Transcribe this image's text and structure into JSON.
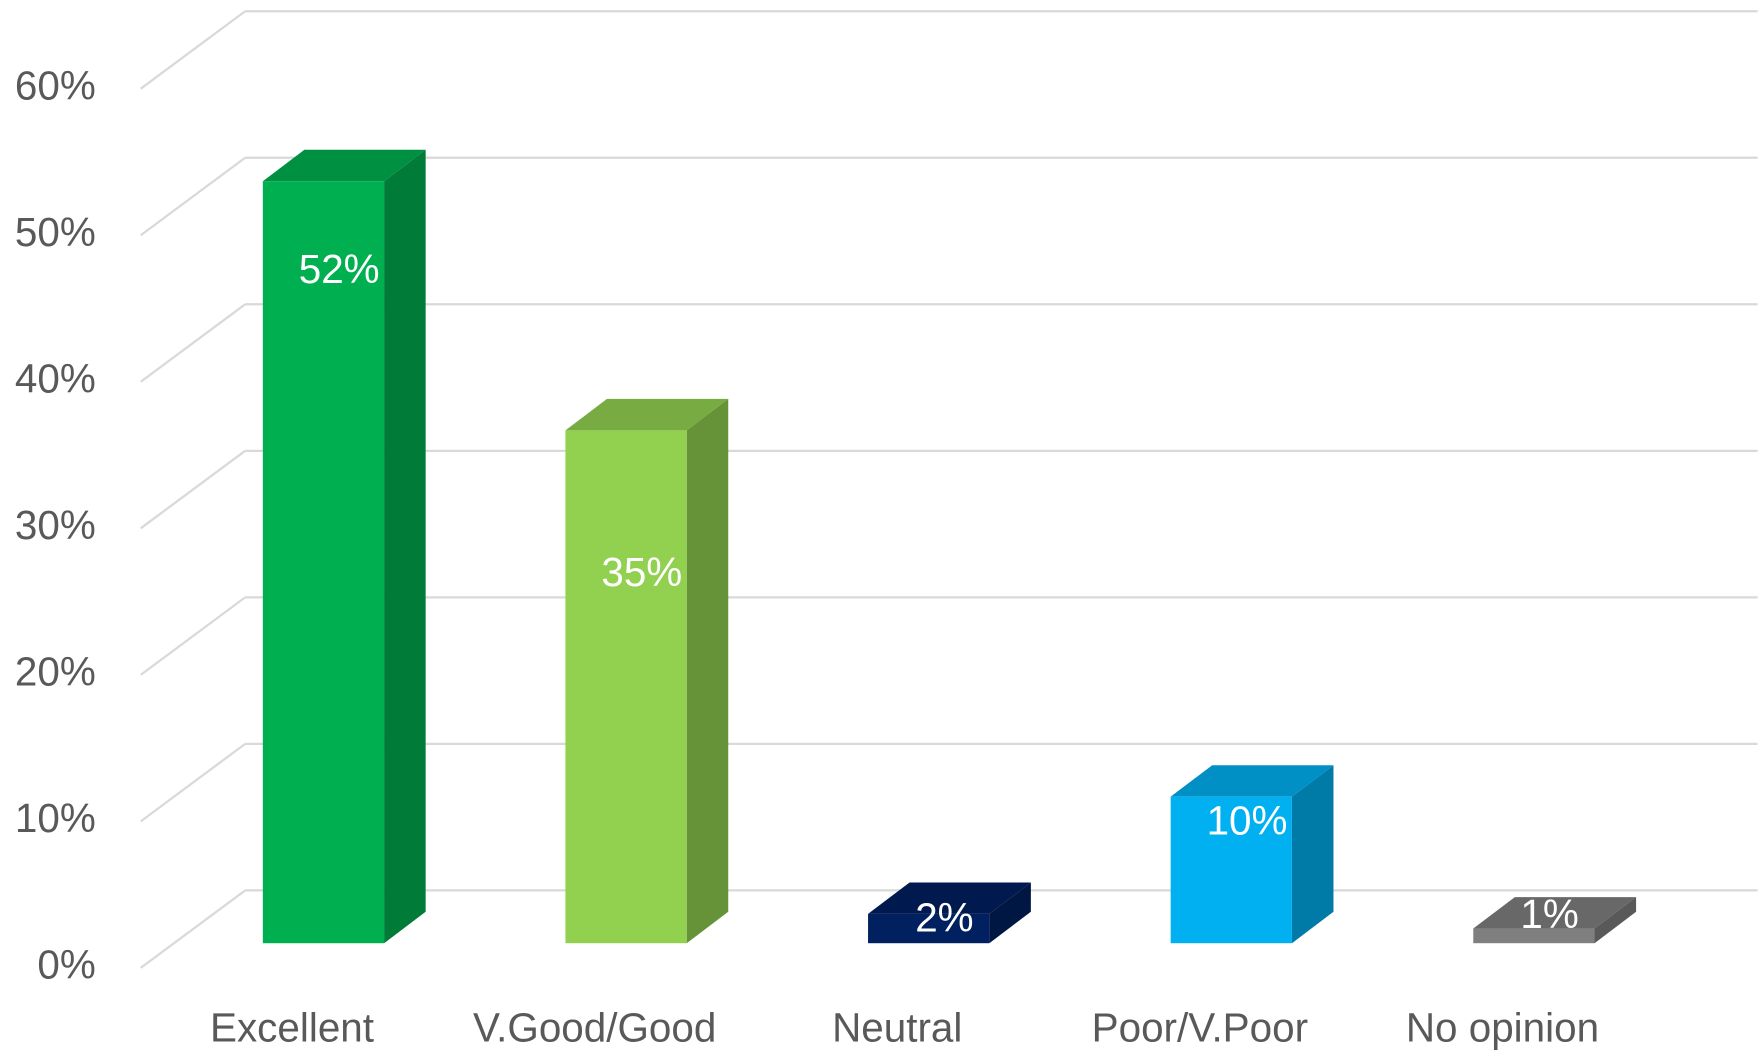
{
  "chart_data": {
    "type": "bar3d",
    "categories": [
      "Excellent",
      "V.Good/Good",
      "Neutral",
      "Poor/V.Poor",
      "No opinion"
    ],
    "values": [
      52,
      35,
      2,
      10,
      1
    ],
    "value_labels": [
      "52%",
      "35%",
      "2%",
      "10%",
      "1%"
    ],
    "colors": [
      "#00b050",
      "#92d050",
      "#002060",
      "#00b0f0",
      "#7f7f7f"
    ],
    "ylim": [
      0,
      60
    ],
    "yticks": [
      {
        "value": 0,
        "label": "0%"
      },
      {
        "value": 10,
        "label": "10%"
      },
      {
        "value": 20,
        "label": "20%"
      },
      {
        "value": 30,
        "label": "30%"
      },
      {
        "value": 40,
        "label": "40%"
      },
      {
        "value": 50,
        "label": "50%"
      },
      {
        "value": 60,
        "label": "60%"
      }
    ],
    "grid": true
  }
}
